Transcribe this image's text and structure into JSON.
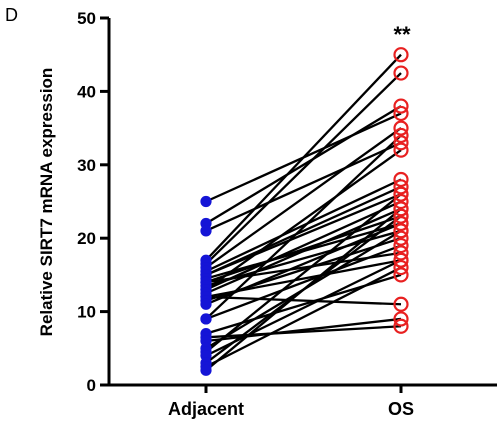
{
  "panel_label": "D",
  "significance": "**",
  "chart_data": {
    "type": "scatter",
    "subtype": "paired-before-after",
    "title": "",
    "xlabel": "",
    "ylabel": "Relative SIRT7 mRNA expression",
    "categories": [
      "Adjacent",
      "OS"
    ],
    "ylim": [
      0,
      50
    ],
    "yticks": [
      0,
      10,
      20,
      30,
      40,
      50
    ],
    "grid": false,
    "legend": "none",
    "colors": {
      "Adjacent": "#1515d6",
      "OS": "#e82020",
      "lines": "#000000"
    },
    "markers": {
      "Adjacent": "filled-circle",
      "OS": "open-circle"
    },
    "pairs": [
      [
        25,
        37
      ],
      [
        22,
        38
      ],
      [
        21,
        33
      ],
      [
        17,
        45
      ],
      [
        16.5,
        42.5
      ],
      [
        16,
        35
      ],
      [
        15.5,
        28
      ],
      [
        15,
        27
      ],
      [
        15,
        26
      ],
      [
        14.5,
        22
      ],
      [
        14,
        23
      ],
      [
        14,
        18
      ],
      [
        13.5,
        21
      ],
      [
        13,
        32
      ],
      [
        13,
        25
      ],
      [
        12.5,
        24
      ],
      [
        12,
        17
      ],
      [
        12,
        11
      ],
      [
        11.5,
        20
      ],
      [
        11,
        22
      ],
      [
        9,
        34
      ],
      [
        9,
        19
      ],
      [
        7,
        15
      ],
      [
        6.5,
        8
      ],
      [
        6,
        9
      ],
      [
        5,
        21
      ],
      [
        4.5,
        26
      ],
      [
        4,
        17
      ],
      [
        3,
        23
      ],
      [
        2.5,
        16
      ],
      [
        2,
        24
      ]
    ]
  }
}
